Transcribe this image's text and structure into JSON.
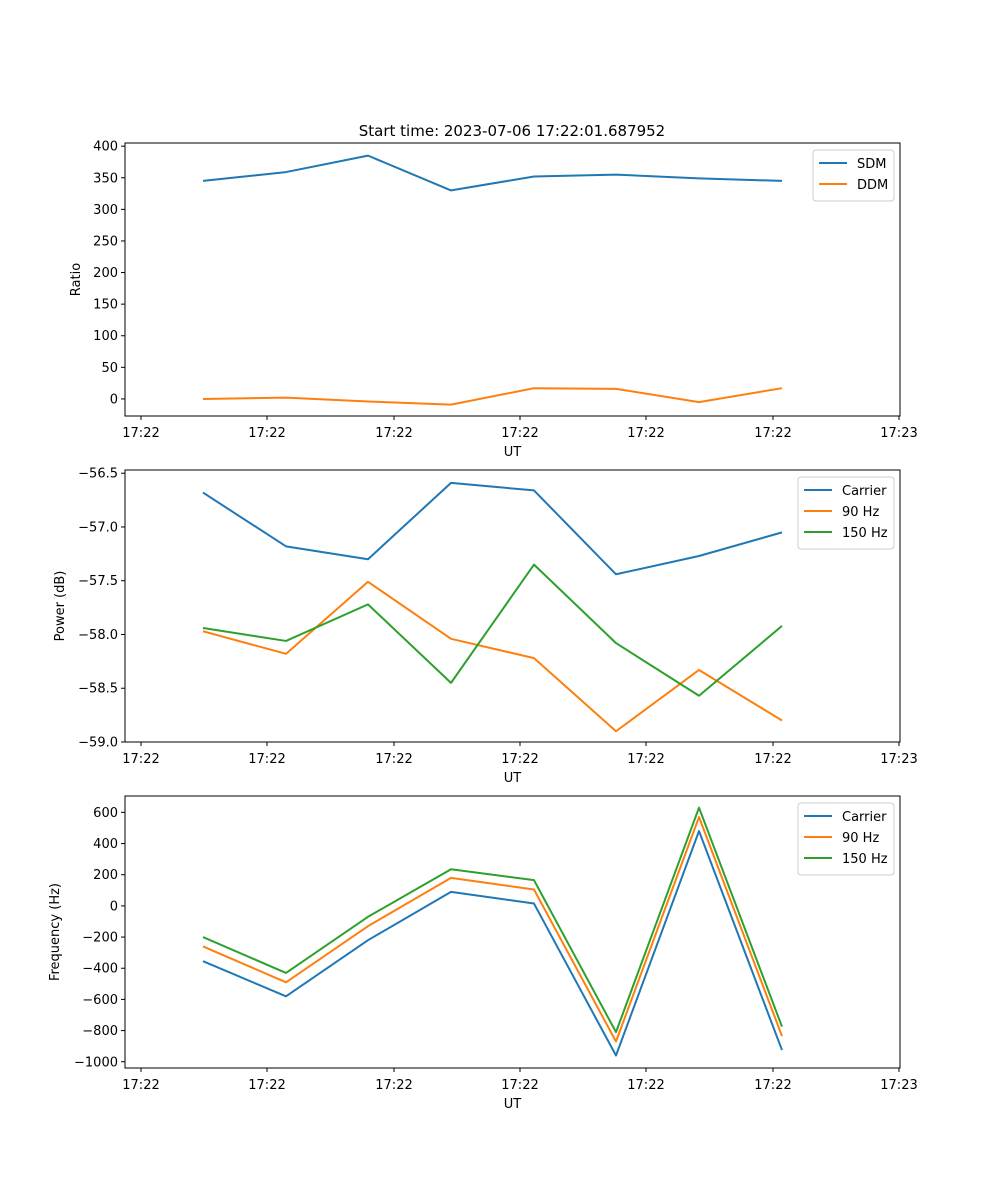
{
  "title": "Start time: 2023-07-06 17:22:01.687952",
  "colors": {
    "blue": "#1f77b4",
    "orange": "#ff7f0e",
    "green": "#2ca02c"
  },
  "chart_data": [
    {
      "type": "line",
      "xlabel": "UT",
      "ylabel": "Ratio",
      "x_tick_labels": [
        "17:22",
        "17:22",
        "17:22",
        "17:22",
        "17:22",
        "17:22",
        "17:23"
      ],
      "ylim": [
        -27,
        405
      ],
      "y_ticks": [
        0,
        50,
        100,
        150,
        200,
        250,
        300,
        350,
        400
      ],
      "y_tick_labels": [
        "0",
        "50",
        "100",
        "150",
        "200",
        "250",
        "300",
        "350",
        "400"
      ],
      "legend": "top-right",
      "series": [
        {
          "name": "SDM",
          "color": "#1f77b4",
          "values": [
            345,
            359,
            385,
            330,
            352,
            355,
            349,
            345
          ]
        },
        {
          "name": "DDM",
          "color": "#ff7f0e",
          "values": [
            0,
            2,
            -4,
            -9,
            17,
            16,
            -5,
            17
          ]
        }
      ]
    },
    {
      "type": "line",
      "xlabel": "UT",
      "ylabel": "Power (dB)",
      "x_tick_labels": [
        "17:22",
        "17:22",
        "17:22",
        "17:22",
        "17:22",
        "17:22",
        "17:23"
      ],
      "ylim": [
        -59.0,
        -56.47
      ],
      "y_ticks": [
        -59.0,
        -58.5,
        -58.0,
        -57.5,
        -57.0,
        -56.5
      ],
      "y_tick_labels": [
        "−59.0",
        "−58.5",
        "−58.0",
        "−57.5",
        "−57.0",
        "−56.5"
      ],
      "legend": "top-right",
      "series": [
        {
          "name": "Carrier",
          "color": "#1f77b4",
          "values": [
            -56.68,
            -57.18,
            -57.3,
            -56.59,
            -56.66,
            -57.44,
            -57.27,
            -57.05
          ]
        },
        {
          "name": "90 Hz",
          "color": "#ff7f0e",
          "values": [
            -57.97,
            -58.18,
            -57.51,
            -58.04,
            -58.22,
            -58.9,
            -58.33,
            -58.8
          ]
        },
        {
          "name": "150 Hz",
          "color": "#2ca02c",
          "values": [
            -57.94,
            -58.06,
            -57.72,
            -58.45,
            -57.35,
            -58.08,
            -58.57,
            -57.92
          ]
        }
      ]
    },
    {
      "type": "line",
      "xlabel": "UT",
      "ylabel": "Frequency (Hz)",
      "x_tick_labels": [
        "17:22",
        "17:22",
        "17:22",
        "17:22",
        "17:22",
        "17:22",
        "17:23"
      ],
      "ylim": [
        -1040,
        705
      ],
      "y_ticks": [
        -1000,
        -800,
        -600,
        -400,
        -200,
        0,
        200,
        400,
        600
      ],
      "y_tick_labels": [
        "−1000",
        "−800",
        "−600",
        "−400",
        "−200",
        "0",
        "200",
        "400",
        "600"
      ],
      "legend": "top-right",
      "series": [
        {
          "name": "Carrier",
          "color": "#1f77b4",
          "values": [
            -355,
            -580,
            -220,
            90,
            15,
            -960,
            480,
            -925
          ]
        },
        {
          "name": "90 Hz",
          "color": "#ff7f0e",
          "values": [
            -260,
            -490,
            -130,
            180,
            105,
            -870,
            570,
            -835
          ]
        },
        {
          "name": "150 Hz",
          "color": "#2ca02c",
          "values": [
            -200,
            -430,
            -70,
            235,
            165,
            -810,
            630,
            -775
          ]
        }
      ]
    }
  ]
}
